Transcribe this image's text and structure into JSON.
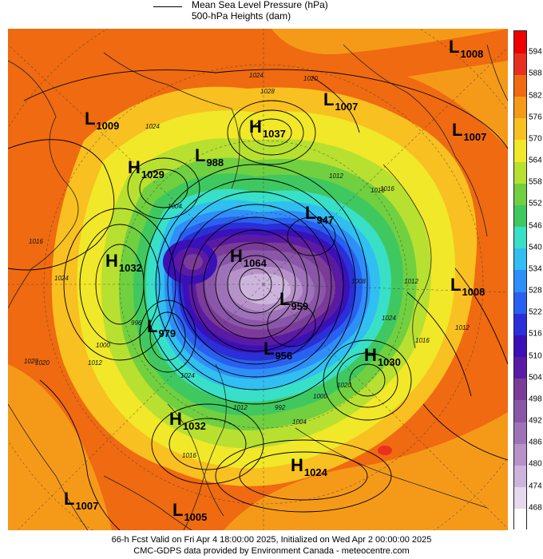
{
  "legend": {
    "mslp": "Mean Sea Level Pressure (hPa)",
    "heights": "500-hPa Heights (dam)"
  },
  "colorbar": {
    "labels": [
      "594",
      "588",
      "582",
      "576",
      "570",
      "564",
      "558",
      "552",
      "546",
      "540",
      "534",
      "528",
      "522",
      "516",
      "510",
      "504",
      "498",
      "492",
      "486",
      "480",
      "474",
      "468"
    ],
    "colors": [
      "#ffffff",
      "#e6d8ee",
      "#cdb4dc",
      "#b692c9",
      "#9e72b8",
      "#8a56a7",
      "#7a3c98",
      "#5b1aa3",
      "#3a10b8",
      "#2a2fd8",
      "#2a60f0",
      "#2f8ff8",
      "#30bff0",
      "#38e0c8",
      "#40c860",
      "#70d040",
      "#b8e030",
      "#f0e828",
      "#f8c020",
      "#f59a18",
      "#ef6a10",
      "#e83020",
      "#ee0000"
    ]
  },
  "systems": [
    {
      "type": "L",
      "value": "1008"
    },
    {
      "type": "L",
      "value": "1007"
    },
    {
      "type": "L",
      "value": "1007"
    },
    {
      "type": "L",
      "value": "1009"
    },
    {
      "type": "H",
      "value": "1037"
    },
    {
      "type": "H",
      "value": "1029"
    },
    {
      "type": "L",
      "value": "988"
    },
    {
      "type": "L",
      "value": "947"
    },
    {
      "type": "H",
      "value": "1032"
    },
    {
      "type": "H",
      "value": "1064"
    },
    {
      "type": "L",
      "value": "1008"
    },
    {
      "type": "L",
      "value": "959"
    },
    {
      "type": "L",
      "value": "979"
    },
    {
      "type": "L",
      "value": "956"
    },
    {
      "type": "H",
      "value": "1030"
    },
    {
      "type": "H",
      "value": "1032"
    },
    {
      "type": "H",
      "value": "1024"
    },
    {
      "type": "L",
      "value": "1007"
    },
    {
      "type": "L",
      "value": "1005"
    }
  ],
  "contour_labels": [
    "1024",
    "1028",
    "1020",
    "1024",
    "1016",
    "1012",
    "1016",
    "1024",
    "1020",
    "1012",
    "1000",
    "996",
    "1004",
    "1016",
    "1012",
    "992",
    "1024",
    "1016",
    "1012",
    "1008",
    "1000",
    "1004",
    "1020",
    "1024",
    "1016",
    "1020",
    "1012"
  ],
  "footer": {
    "line1": "66-h Fcst Valid on Fri Apr  4 18:00:00 2025, Initialized on Wed Apr  2 00:00:00 2025",
    "line2": "CMC-GDPS data provided by Environment Canada - meteocentre.com"
  }
}
